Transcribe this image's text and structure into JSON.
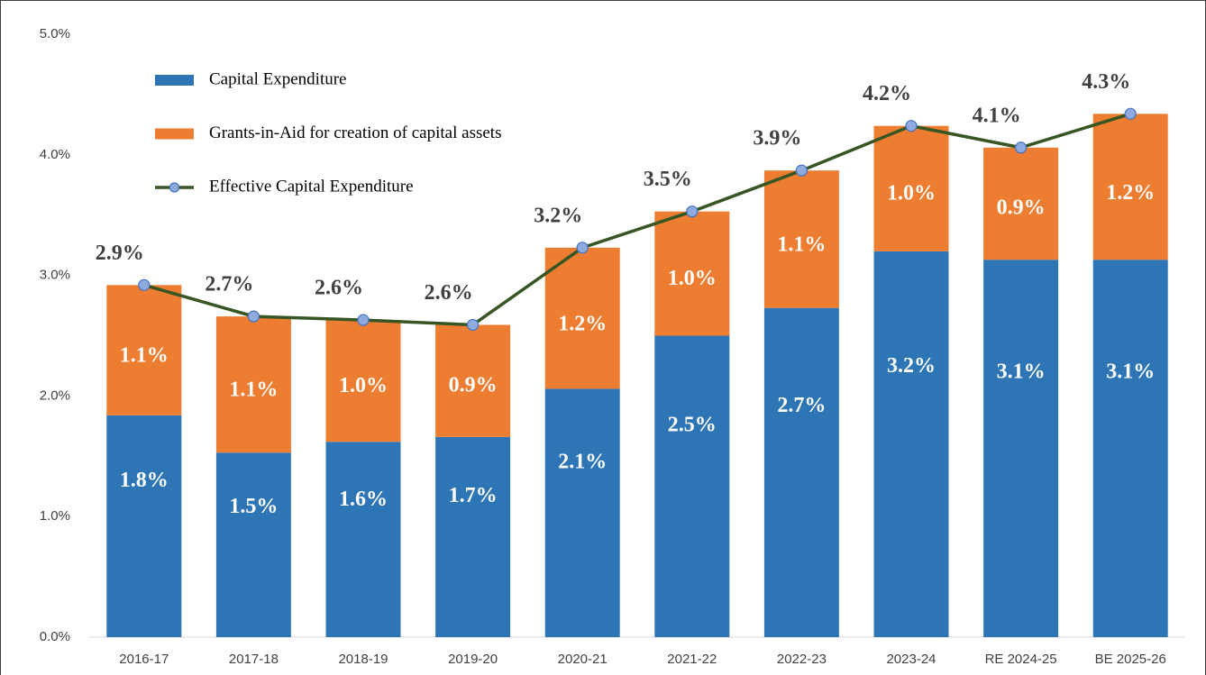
{
  "chart_data": {
    "type": "stacked_bar_line",
    "categories": [
      "2016-17",
      "2017-18",
      "2018-19",
      "2019-20",
      "2020-21",
      "2021-22",
      "2022-23",
      "2023-24",
      "RE 2024-25",
      "BE 2025-26"
    ],
    "series": [
      {
        "name": "Capital Expenditure",
        "kind": "bar",
        "color": "#2e75b6",
        "values": [
          1.84,
          1.53,
          1.62,
          1.66,
          2.06,
          2.5,
          2.73,
          3.2,
          3.13,
          3.13
        ],
        "value_labels": [
          "1.8%",
          "1.5%",
          "1.6%",
          "1.7%",
          "2.1%",
          "2.5%",
          "2.7%",
          "3.2%",
          "3.1%",
          "3.1%"
        ]
      },
      {
        "name": "Grants-in-Aid for creation of capital assets",
        "kind": "bar",
        "color": "#ed7d31",
        "values": [
          1.08,
          1.13,
          1.01,
          0.93,
          1.17,
          1.03,
          1.14,
          1.04,
          0.93,
          1.21
        ],
        "value_labels": [
          "1.1%",
          "1.1%",
          "1.0%",
          "0.9%",
          "1.2%",
          "1.0%",
          "1.1%",
          "1.0%",
          "0.9%",
          "1.2%"
        ]
      },
      {
        "name": "Effective Capital Expenditure",
        "kind": "line",
        "color": "#375623",
        "marker_color": "#8faadc",
        "values": [
          2.92,
          2.66,
          2.63,
          2.59,
          3.23,
          3.53,
          3.87,
          4.24,
          4.06,
          4.34
        ],
        "value_labels": [
          "2.9%",
          "2.7%",
          "2.6%",
          "2.6%",
          "3.2%",
          "3.5%",
          "3.9%",
          "4.2%",
          "4.1%",
          "4.3%"
        ]
      }
    ],
    "ylim": [
      0,
      5
    ],
    "yticks": [
      {
        "value": 0,
        "label": "0.0%"
      },
      {
        "value": 1,
        "label": "1.0%"
      },
      {
        "value": 2,
        "label": "2.0%"
      },
      {
        "value": 3,
        "label": "3.0%"
      },
      {
        "value": 4,
        "label": "4.0%"
      },
      {
        "value": 5,
        "label": "5.0%"
      }
    ],
    "grid": false,
    "legend": "top-left"
  }
}
